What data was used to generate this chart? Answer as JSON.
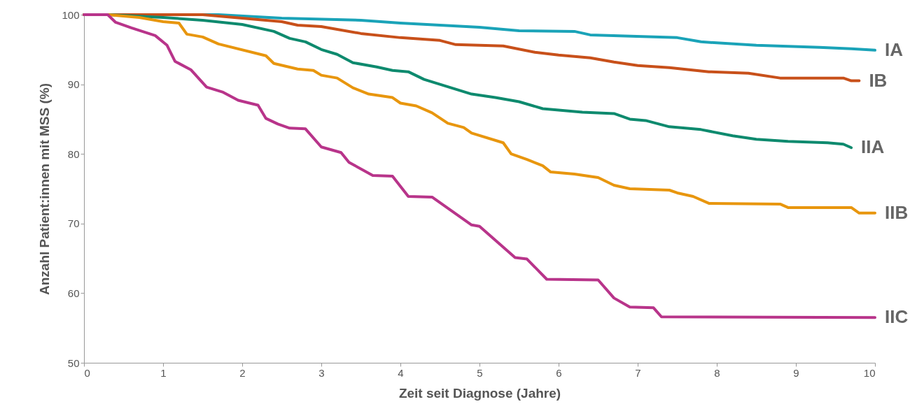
{
  "chart_data": {
    "type": "line",
    "xlabel": "Zeit seit Diagnose (Jahre)",
    "ylabel": "Anzahl Patient:innen mit MSS (%)",
    "xlim": [
      0,
      10
    ],
    "ylim": [
      50,
      100
    ],
    "xticks": [
      0,
      1,
      2,
      3,
      4,
      5,
      6,
      7,
      8,
      9,
      10
    ],
    "yticks": [
      50,
      60,
      70,
      80,
      90,
      100
    ],
    "grid": false,
    "marker": "none",
    "line_style": "solid",
    "series": [
      {
        "name": "IA",
        "color": "#1aa3b8",
        "x": [
          0,
          1.7,
          2.5,
          3.5,
          4,
          5,
          5.5,
          6.2,
          6.4,
          7.5,
          7.8,
          8.5,
          9.3,
          9.7,
          10
        ],
        "values": [
          100,
          100,
          99.5,
          99.2,
          98.8,
          98.2,
          97.7,
          97.6,
          97.1,
          96.7,
          96.1,
          95.6,
          95.3,
          95.1,
          94.9
        ]
      },
      {
        "name": "IB",
        "color": "#c8501a",
        "x": [
          0,
          1.5,
          2,
          2.5,
          2.7,
          3,
          3.5,
          4,
          4.5,
          4.7,
          5.3,
          5.7,
          6,
          6.4,
          6.7,
          7,
          7.4,
          7.9,
          8.4,
          8.8,
          9.6,
          9.7,
          9.8
        ],
        "values": [
          100,
          100,
          99.5,
          99,
          98.5,
          98.3,
          97.3,
          96.7,
          96.3,
          95.7,
          95.5,
          94.6,
          94.2,
          93.8,
          93.2,
          92.7,
          92.4,
          91.8,
          91.6,
          90.9,
          90.9,
          90.5,
          90.5
        ]
      },
      {
        "name": "IIA",
        "color": "#0e8a6e",
        "x": [
          0,
          0.3,
          1,
          1.5,
          2,
          2.4,
          2.6,
          2.8,
          3,
          3.2,
          3.4,
          3.7,
          3.9,
          4.1,
          4.3,
          4.9,
          5.2,
          5.5,
          5.8,
          6.3,
          6.7,
          6.9,
          7.1,
          7.4,
          7.8,
          8.2,
          8.5,
          8.9,
          9.4,
          9.6,
          9.7
        ],
        "values": [
          100,
          100,
          99.6,
          99.2,
          98.6,
          97.6,
          96.6,
          96.1,
          95,
          94.3,
          93.1,
          92.5,
          92,
          91.8,
          90.7,
          88.6,
          88.1,
          87.5,
          86.5,
          86,
          85.8,
          85,
          84.8,
          83.9,
          83.5,
          82.6,
          82.1,
          81.8,
          81.6,
          81.4,
          80.9
        ]
      },
      {
        "name": "IIB",
        "color": "#e8960e",
        "x": [
          0,
          0.3,
          0.7,
          1,
          1.2,
          1.3,
          1.5,
          1.7,
          2.3,
          2.4,
          2.7,
          2.9,
          3,
          3.2,
          3.4,
          3.6,
          3.9,
          4,
          4.2,
          4.4,
          4.6,
          4.8,
          4.9,
          5.3,
          5.4,
          5.6,
          5.8,
          5.9,
          6.2,
          6.5,
          6.7,
          6.9,
          7.4,
          7.5,
          7.7,
          7.9,
          8.8,
          8.9,
          9.7,
          9.8,
          10
        ],
        "values": [
          100,
          100,
          99.6,
          99,
          98.8,
          97.2,
          96.8,
          95.8,
          94.1,
          93,
          92.2,
          92,
          91.3,
          90.9,
          89.5,
          88.6,
          88.1,
          87.3,
          86.9,
          85.9,
          84.4,
          83.8,
          83,
          81.6,
          80,
          79.2,
          78.3,
          77.4,
          77.1,
          76.6,
          75.5,
          75,
          74.8,
          74.4,
          73.9,
          72.9,
          72.8,
          72.3,
          72.3,
          71.5,
          71.5
        ]
      },
      {
        "name": "IIC",
        "color": "#b8348a",
        "x": [
          0,
          0.3,
          0.4,
          0.6,
          0.9,
          1.05,
          1.15,
          1.35,
          1.55,
          1.75,
          1.95,
          2.2,
          2.3,
          2.45,
          2.6,
          2.8,
          3,
          3.25,
          3.35,
          3.65,
          3.9,
          4.1,
          4.4,
          4.9,
          5,
          5.45,
          5.6,
          5.85,
          6.5,
          6.7,
          6.9,
          7.2,
          7.3,
          10
        ],
        "values": [
          100,
          100,
          98.9,
          98.1,
          97,
          95.6,
          93.3,
          92.1,
          89.6,
          88.9,
          87.7,
          87,
          85.1,
          84.3,
          83.7,
          83.6,
          81,
          80.2,
          78.8,
          76.9,
          76.8,
          73.9,
          73.8,
          69.8,
          69.6,
          65.1,
          64.9,
          62,
          61.9,
          59.3,
          58,
          57.9,
          56.6,
          56.5
        ]
      }
    ]
  }
}
